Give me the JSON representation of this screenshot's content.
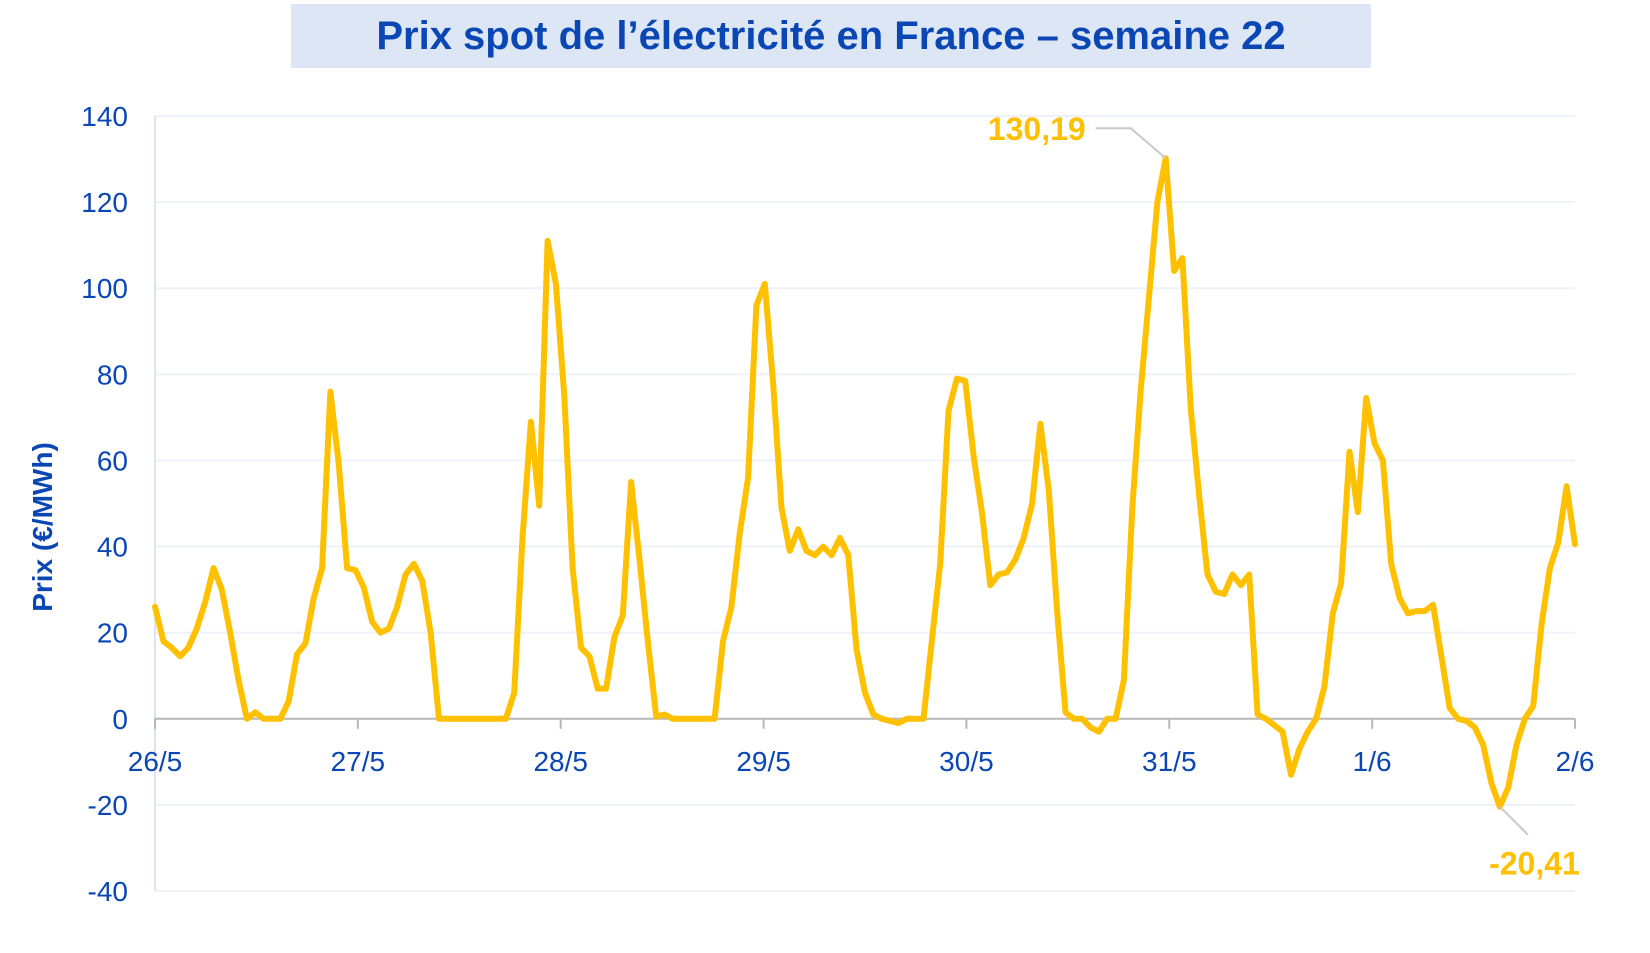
{
  "chart_data": {
    "type": "line",
    "title": "Prix spot de l’électricité en France – semaine 22",
    "ylabel": "Prix (€/MWh)",
    "xlabel": "",
    "ylim": [
      -40,
      140
    ],
    "yticks": [
      140,
      120,
      100,
      80,
      60,
      40,
      20,
      0,
      -20,
      -40
    ],
    "xticks": [
      "26/5",
      "27/5",
      "28/5",
      "29/5",
      "30/5",
      "31/5",
      "1/6",
      "2/6"
    ],
    "grid": true,
    "color": "#ffc000",
    "series": [
      {
        "values": [
          26,
          18,
          16.5,
          14.5,
          16.5,
          21,
          27,
          35,
          30,
          20,
          9,
          0,
          1.5,
          0,
          0,
          0,
          4,
          15,
          17.5,
          28,
          35,
          76,
          59,
          35,
          34.5,
          30.5,
          22.5,
          20,
          21,
          26,
          33.5,
          36,
          32,
          20,
          0,
          0,
          0,
          0,
          0,
          0,
          0,
          0,
          0,
          6,
          42,
          69,
          49.5,
          111,
          101,
          75,
          35,
          16.5,
          14.5,
          7,
          7,
          19,
          24,
          55,
          37,
          18,
          0.5,
          1,
          0,
          0,
          0,
          0,
          0,
          0,
          18,
          26,
          43,
          56,
          96,
          101,
          78,
          49,
          39,
          44,
          39,
          38,
          40,
          38,
          42,
          38,
          16,
          6,
          1,
          0,
          -0.5,
          -1,
          0,
          0,
          0,
          18,
          36,
          71.5,
          79,
          78.5,
          61,
          48,
          31,
          33.5,
          34,
          37,
          42,
          50,
          68.5,
          53,
          25,
          1.5,
          0,
          0,
          -2,
          -3,
          0,
          0,
          9,
          49,
          76,
          98,
          120,
          130.19,
          104,
          107,
          72,
          52,
          33.5,
          29.5,
          29,
          33.5,
          31,
          33.5,
          1,
          0,
          -1.5,
          -3,
          -13,
          -7,
          -3,
          0,
          7.5,
          24.5,
          31.5,
          62,
          48,
          74.5,
          64,
          60,
          36,
          28,
          24.5,
          25,
          25,
          26.5,
          14.5,
          2.5,
          0,
          -0.5,
          -2,
          -6,
          -15,
          -20.41,
          -16,
          -6,
          0,
          3,
          22,
          35,
          41,
          54,
          40.5
        ]
      }
    ],
    "annotations": [
      {
        "label": "130,19",
        "value": 130.19
      },
      {
        "label": "-20,41",
        "value": -20.41
      }
    ]
  }
}
